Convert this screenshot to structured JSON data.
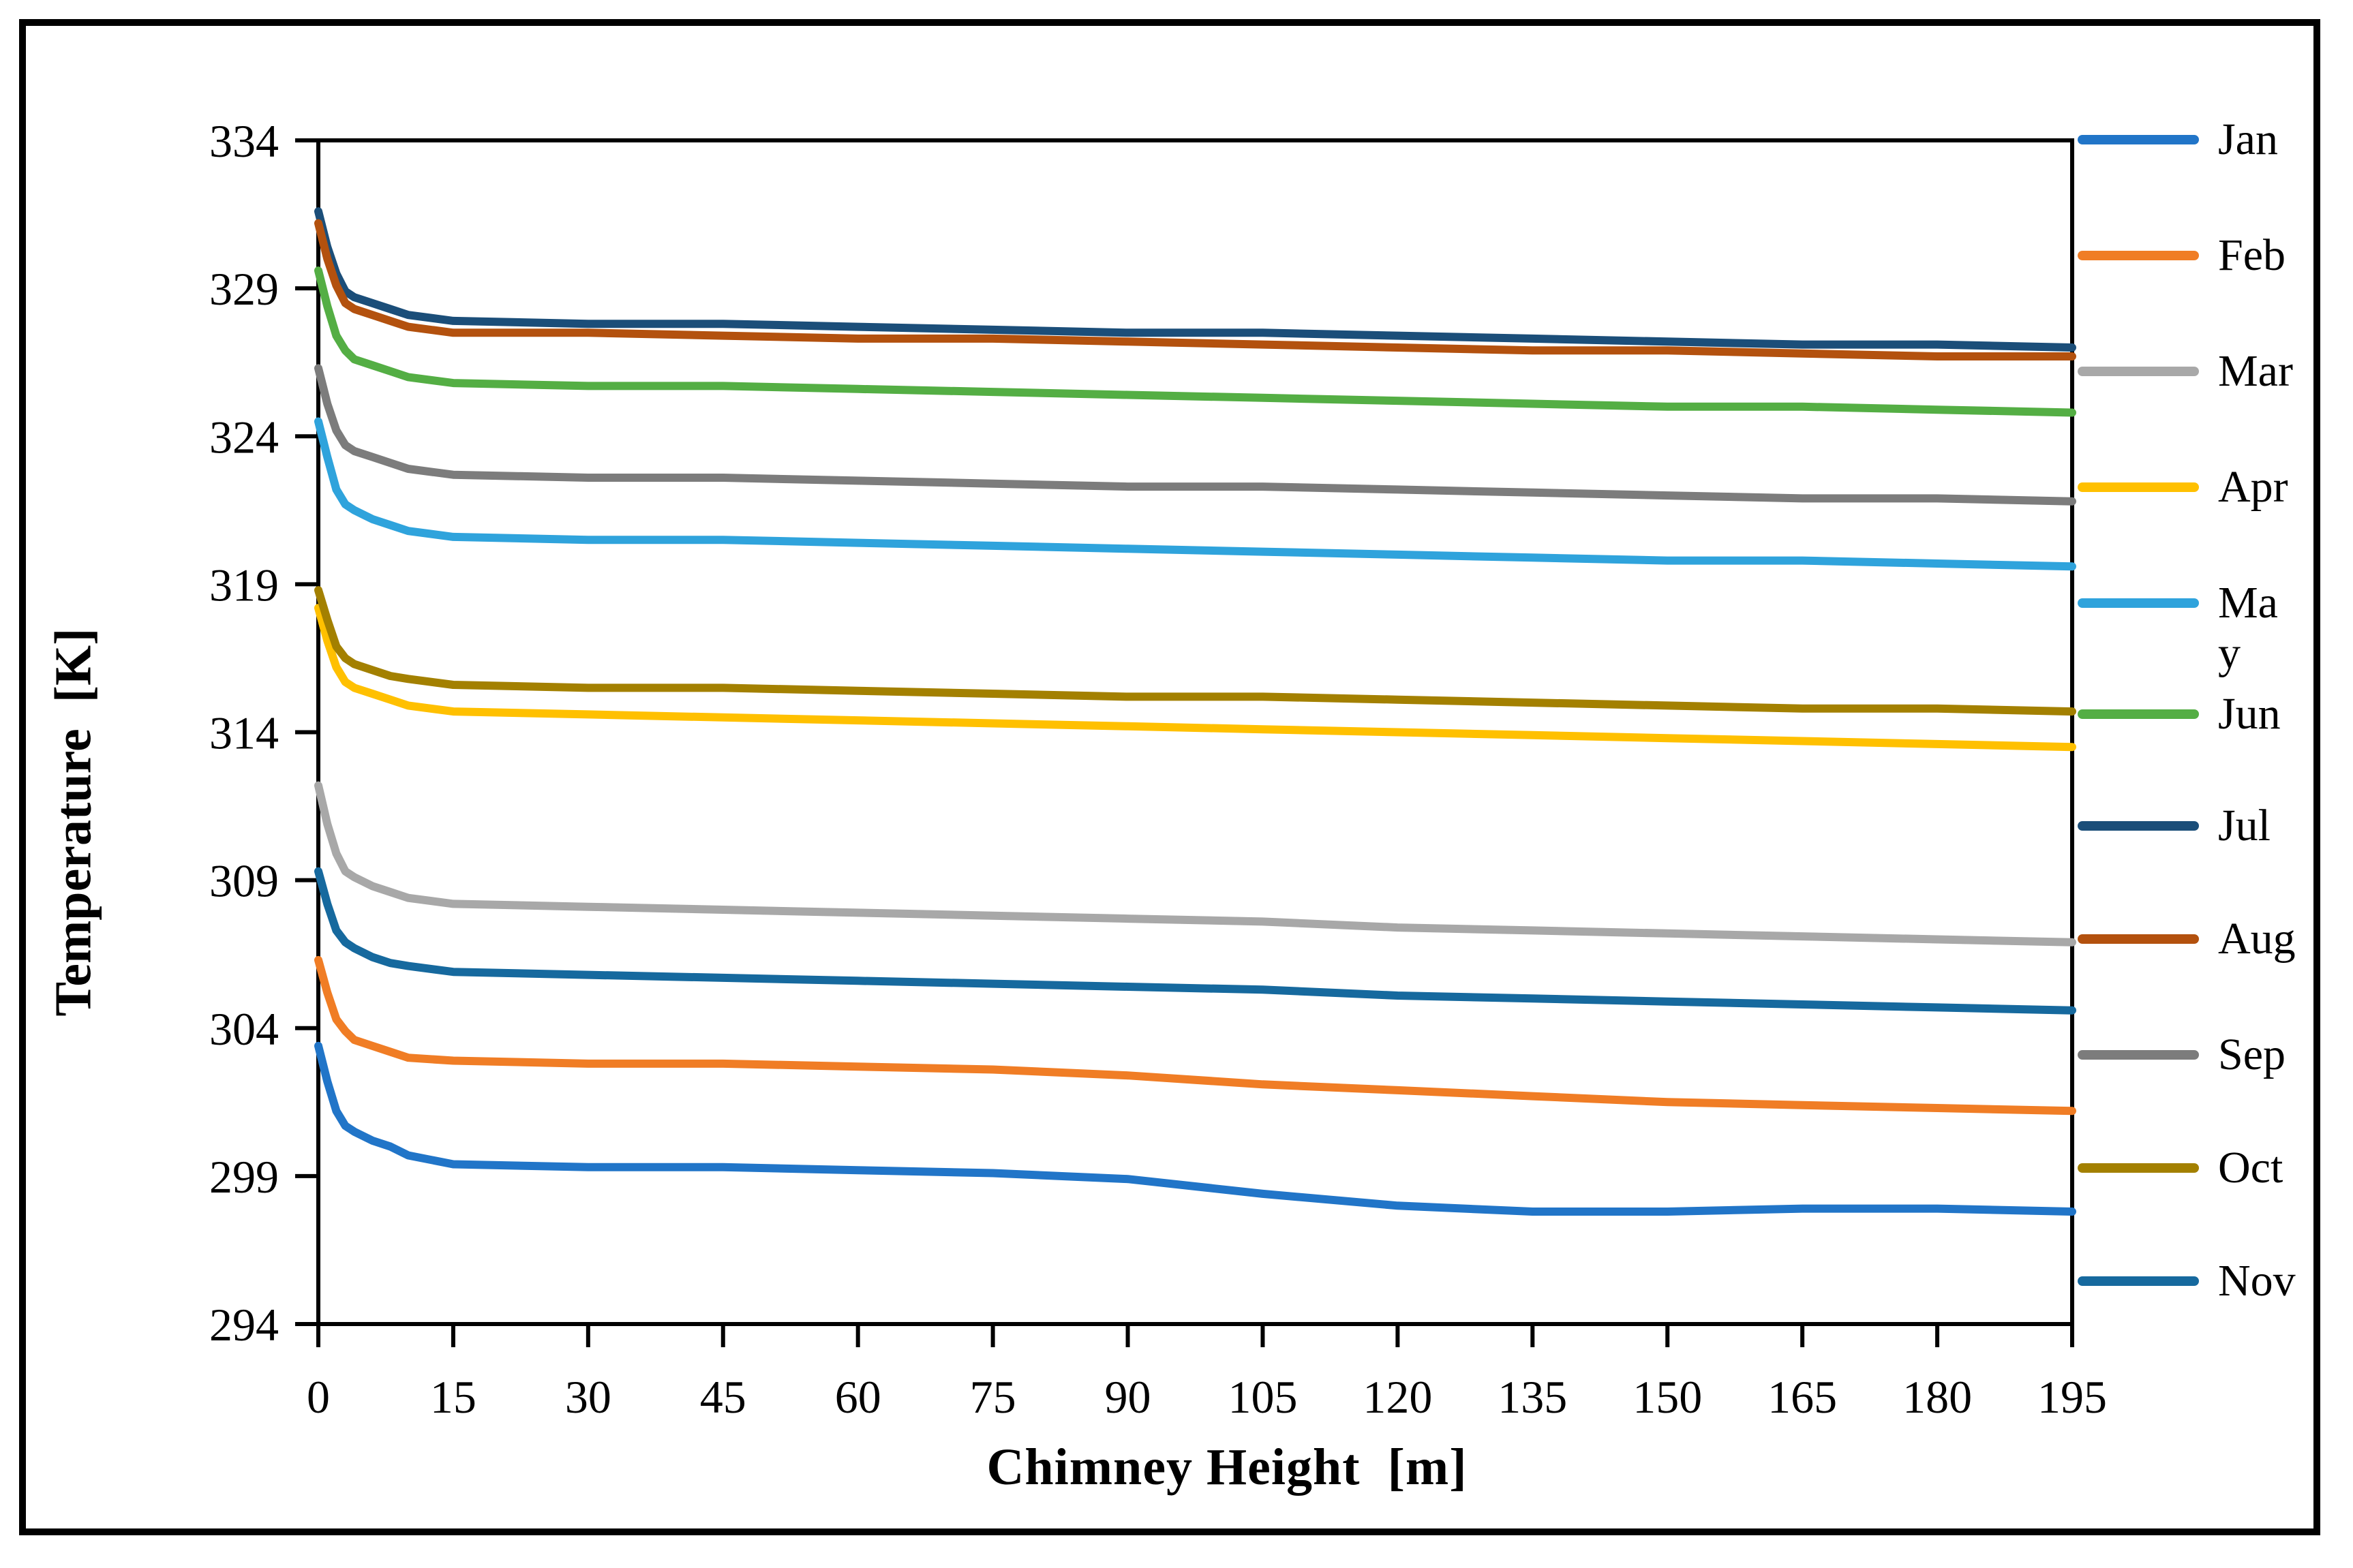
{
  "figure": {
    "background": "#ffffff",
    "frame_color": "#000000"
  },
  "chart_data": {
    "type": "line",
    "title": "",
    "xlabel": "Chimney Height  [m]",
    "ylabel": "Temperature  [K]",
    "xlim": [
      0,
      195
    ],
    "ylim": [
      294,
      334
    ],
    "x_ticks": [
      0,
      15,
      30,
      45,
      60,
      75,
      90,
      105,
      120,
      135,
      150,
      165,
      180,
      195
    ],
    "y_ticks": [
      294,
      299,
      304,
      309,
      314,
      319,
      324,
      329,
      334
    ],
    "grid": false,
    "legend_position": "right",
    "x": [
      0,
      1,
      2,
      3,
      4,
      6,
      8,
      10,
      15,
      30,
      45,
      60,
      75,
      90,
      105,
      120,
      135,
      150,
      165,
      180,
      195
    ],
    "series": [
      {
        "name": "Jan",
        "legend_lines": [
          "Jan"
        ],
        "color": "#2175C8",
        "values": [
          303.4,
          302.2,
          301.2,
          300.7,
          300.5,
          300.2,
          300.0,
          299.7,
          299.4,
          299.3,
          299.3,
          299.2,
          299.1,
          298.9,
          298.4,
          298.0,
          297.8,
          297.8,
          297.9,
          297.9,
          297.8
        ]
      },
      {
        "name": "Feb",
        "legend_lines": [
          "Feb"
        ],
        "color": "#F07D25",
        "values": [
          306.3,
          305.2,
          304.3,
          303.9,
          303.6,
          303.4,
          303.2,
          303.0,
          302.9,
          302.8,
          302.8,
          302.7,
          302.6,
          302.4,
          302.1,
          301.9,
          301.7,
          301.5,
          301.4,
          301.3,
          301.2
        ]
      },
      {
        "name": "Mar",
        "legend_lines": [
          "Mar"
        ],
        "color": "#A8A8A8",
        "values": [
          312.2,
          310.9,
          309.9,
          309.3,
          309.1,
          308.8,
          308.6,
          308.4,
          308.2,
          308.1,
          308.0,
          307.9,
          307.8,
          307.7,
          307.6,
          307.4,
          307.3,
          307.2,
          307.1,
          307.0,
          306.9
        ]
      },
      {
        "name": "Apr",
        "legend_lines": [
          "Apr"
        ],
        "color": "#FFC000",
        "values": [
          318.2,
          317.1,
          316.2,
          315.7,
          315.5,
          315.3,
          315.1,
          314.9,
          314.7,
          314.6,
          314.5,
          314.4,
          314.3,
          314.2,
          314.1,
          314.0,
          313.9,
          313.8,
          313.7,
          313.6,
          313.5
        ]
      },
      {
        "name": "May",
        "legend_lines": [
          "Ma",
          "y"
        ],
        "color": "#2FA3DC",
        "values": [
          324.5,
          323.3,
          322.2,
          321.7,
          321.5,
          321.2,
          321.0,
          320.8,
          320.6,
          320.5,
          320.5,
          320.4,
          320.3,
          320.2,
          320.1,
          320.0,
          319.9,
          319.8,
          319.8,
          319.7,
          319.6
        ]
      },
      {
        "name": "Jun",
        "legend_lines": [
          "Jun"
        ],
        "color": "#54AE44",
        "values": [
          329.6,
          328.4,
          327.4,
          326.9,
          326.6,
          326.4,
          326.2,
          326.0,
          325.8,
          325.7,
          325.7,
          325.6,
          325.5,
          325.4,
          325.3,
          325.2,
          325.1,
          325.0,
          325.0,
          324.9,
          324.8
        ]
      },
      {
        "name": "Jul",
        "legend_lines": [
          "Jul"
        ],
        "color": "#1B4E79",
        "values": [
          331.6,
          330.4,
          329.5,
          328.9,
          328.7,
          328.5,
          328.3,
          328.1,
          327.9,
          327.8,
          327.8,
          327.7,
          327.6,
          327.5,
          327.5,
          327.4,
          327.3,
          327.2,
          327.1,
          327.1,
          327.0
        ]
      },
      {
        "name": "Aug",
        "legend_lines": [
          "Aug"
        ],
        "color": "#B3510E",
        "values": [
          331.2,
          330.0,
          329.1,
          328.5,
          328.3,
          328.1,
          327.9,
          327.7,
          327.5,
          327.5,
          327.4,
          327.3,
          327.3,
          327.2,
          327.1,
          327.0,
          326.9,
          326.9,
          326.8,
          326.7,
          326.7
        ]
      },
      {
        "name": "Sep",
        "legend_lines": [
          "Sep"
        ],
        "color": "#7C7C7C",
        "values": [
          326.3,
          325.1,
          324.2,
          323.7,
          323.5,
          323.3,
          323.1,
          322.9,
          322.7,
          322.6,
          322.6,
          322.5,
          322.4,
          322.3,
          322.3,
          322.2,
          322.1,
          322.0,
          321.9,
          321.9,
          321.8
        ]
      },
      {
        "name": "Oct",
        "legend_lines": [
          "Oct"
        ],
        "color": "#A38000",
        "values": [
          318.8,
          317.8,
          316.9,
          316.5,
          316.3,
          316.1,
          315.9,
          315.8,
          315.6,
          315.5,
          315.5,
          315.4,
          315.3,
          315.2,
          315.2,
          315.1,
          315.0,
          314.9,
          314.8,
          314.8,
          314.7
        ]
      },
      {
        "name": "Nov",
        "legend_lines": [
          "Nov"
        ],
        "color": "#16699E",
        "values": [
          309.3,
          308.2,
          307.3,
          306.9,
          306.7,
          306.4,
          306.2,
          306.1,
          305.9,
          305.8,
          305.7,
          305.6,
          305.5,
          305.4,
          305.3,
          305.1,
          305.0,
          304.9,
          304.8,
          304.7,
          304.6
        ]
      }
    ]
  }
}
